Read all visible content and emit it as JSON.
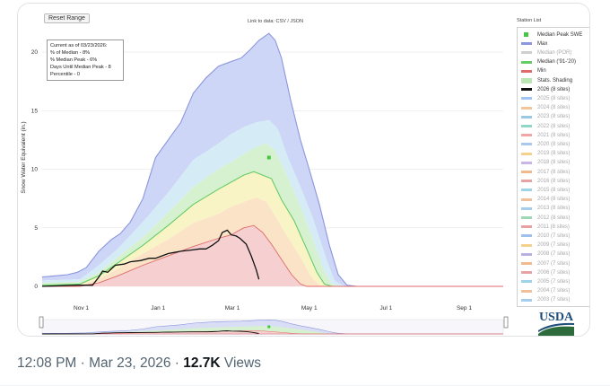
{
  "controls": {
    "reset_label": "Reset Range",
    "link_label": "Link to data: CSV / JSON"
  },
  "info": {
    "line1": "Current as of 03/23/2026:",
    "line2": "% of Median - 8%",
    "line3": "% Median Peak - 6%",
    "line4": "Days Until Median Peak - 8",
    "line5": "Percentile - 0"
  },
  "station_list": {
    "title": "Station List",
    "items": [
      {
        "label": "Median Peak SWE",
        "color": "#44c644",
        "marker": "square"
      },
      {
        "label": "Max",
        "color": "#8c96dc"
      },
      {
        "label": "Median (POR)",
        "color": "#cfcfcf",
        "muted": true
      },
      {
        "label": "Median ('91-'20)",
        "color": "#66cc66"
      },
      {
        "label": "Min",
        "color": "#e06a6a"
      },
      {
        "label": "Stats. Shading",
        "color": "#b9e6b2"
      },
      {
        "label": "2026 (8 sites)",
        "color": "#111111"
      },
      {
        "label": "2025 (8 sites)",
        "color": "#9ec5f5",
        "muted": true
      },
      {
        "label": "2024 (8 sites)",
        "color": "#f5c49a",
        "muted": true
      },
      {
        "label": "2023 (8 sites)",
        "color": "#9cc8e8",
        "muted": true
      },
      {
        "label": "2022 (8 sites)",
        "color": "#8fd8c8",
        "muted": true
      },
      {
        "label": "2021 (8 sites)",
        "color": "#f1a6a6",
        "muted": true
      },
      {
        "label": "2020 (8 sites)",
        "color": "#a8c8f0",
        "muted": true
      },
      {
        "label": "2019 (8 sites)",
        "color": "#f4d28a",
        "muted": true
      },
      {
        "label": "2018 (8 sites)",
        "color": "#c8b6e8",
        "muted": true
      },
      {
        "label": "2017 (8 sites)",
        "color": "#f2b98c",
        "muted": true
      },
      {
        "label": "2016 (8 sites)",
        "color": "#e7a3a3",
        "muted": true
      },
      {
        "label": "2015 (8 sites)",
        "color": "#9fd4e8",
        "muted": true
      },
      {
        "label": "2014 (8 sites)",
        "color": "#f0c09a",
        "muted": true
      },
      {
        "label": "2013 (8 sites)",
        "color": "#a5cdee",
        "muted": true
      },
      {
        "label": "2012 (8 sites)",
        "color": "#9fd6b4",
        "muted": true
      },
      {
        "label": "2011 (8 sites)",
        "color": "#e9a0a0",
        "muted": true
      },
      {
        "label": "2010 (7 sites)",
        "color": "#9ec0ec",
        "muted": true
      },
      {
        "label": "2009 (7 sites)",
        "color": "#f4d28a",
        "muted": true
      },
      {
        "label": "2008 (7 sites)",
        "color": "#b8b0e0",
        "muted": true
      },
      {
        "label": "2007 (7 sites)",
        "color": "#f2b98c",
        "muted": true
      },
      {
        "label": "2006 (7 sites)",
        "color": "#e7a3a3",
        "muted": true
      },
      {
        "label": "2005 (7 sites)",
        "color": "#9fd4e8",
        "muted": true
      },
      {
        "label": "2004 (7 sites)",
        "color": "#f0c09a",
        "muted": true
      },
      {
        "label": "2003 (7 sites)",
        "color": "#a5cdee",
        "muted": true
      }
    ]
  },
  "chart_data": {
    "type": "area",
    "ylabel": "Snow Water Equivalent (in.)",
    "ylim": [
      0,
      22
    ],
    "yticks": [
      0,
      5,
      10,
      15,
      20
    ],
    "x_ticks": [
      "Nov 1",
      "Jan 1",
      "Mar 1",
      "May 1",
      "Jul 1",
      "Sep 1"
    ],
    "x_tick_days": [
      31,
      92,
      151,
      212,
      273,
      335
    ],
    "xlim": [
      0,
      366
    ],
    "grid": "horizontal",
    "max": [
      [
        0,
        0.8
      ],
      [
        10,
        0.9
      ],
      [
        20,
        1.0
      ],
      [
        28,
        1.2
      ],
      [
        35,
        1.6
      ],
      [
        45,
        3.0
      ],
      [
        55,
        4.0
      ],
      [
        62,
        4.5
      ],
      [
        70,
        5.5
      ],
      [
        80,
        7.5
      ],
      [
        90,
        11.0
      ],
      [
        100,
        12.5
      ],
      [
        110,
        14.0
      ],
      [
        120,
        16.5
      ],
      [
        130,
        17.8
      ],
      [
        140,
        18.8
      ],
      [
        150,
        19.2
      ],
      [
        158,
        19.5
      ],
      [
        165,
        20.2
      ],
      [
        172,
        21.0
      ],
      [
        180,
        21.6
      ],
      [
        185,
        21.0
      ],
      [
        190,
        19.5
      ],
      [
        197,
        16.0
      ],
      [
        205,
        12.5
      ],
      [
        212,
        10.0
      ],
      [
        220,
        7.0
      ],
      [
        228,
        3.5
      ],
      [
        235,
        1.0
      ],
      [
        242,
        0.1
      ],
      [
        250,
        0
      ],
      [
        366,
        0
      ]
    ],
    "p90": [
      [
        0,
        0.5
      ],
      [
        30,
        0.6
      ],
      [
        45,
        1.8
      ],
      [
        60,
        3.2
      ],
      [
        80,
        5.5
      ],
      [
        100,
        8.0
      ],
      [
        120,
        10.8
      ],
      [
        140,
        12.2
      ],
      [
        150,
        13.0
      ],
      [
        160,
        13.6
      ],
      [
        170,
        14.0
      ],
      [
        180,
        14.2
      ],
      [
        187,
        13.5
      ],
      [
        195,
        11.0
      ],
      [
        205,
        8.5
      ],
      [
        215,
        5.8
      ],
      [
        225,
        2.5
      ],
      [
        232,
        0.5
      ],
      [
        240,
        0
      ],
      [
        366,
        0
      ]
    ],
    "p70": [
      [
        0,
        0.3
      ],
      [
        30,
        0.4
      ],
      [
        45,
        1.2
      ],
      [
        60,
        2.5
      ],
      [
        80,
        4.2
      ],
      [
        100,
        6.3
      ],
      [
        120,
        8.5
      ],
      [
        140,
        10.0
      ],
      [
        150,
        10.6
      ],
      [
        160,
        11.3
      ],
      [
        170,
        11.9
      ],
      [
        178,
        12.2
      ],
      [
        185,
        11.6
      ],
      [
        195,
        9.3
      ],
      [
        205,
        6.8
      ],
      [
        215,
        4.0
      ],
      [
        223,
        1.5
      ],
      [
        230,
        0.2
      ],
      [
        236,
        0
      ],
      [
        366,
        0
      ]
    ],
    "p50": [
      [
        0,
        0.1
      ],
      [
        30,
        0.2
      ],
      [
        45,
        0.9
      ],
      [
        60,
        2.0
      ],
      [
        80,
        3.5
      ],
      [
        100,
        5.2
      ],
      [
        120,
        7.0
      ],
      [
        140,
        8.3
      ],
      [
        150,
        8.9
      ],
      [
        160,
        9.5
      ],
      [
        168,
        9.8
      ],
      [
        175,
        9.5
      ],
      [
        182,
        9.2
      ],
      [
        190,
        7.4
      ],
      [
        200,
        5.6
      ],
      [
        210,
        3.2
      ],
      [
        218,
        1.2
      ],
      [
        224,
        0.2
      ],
      [
        230,
        0
      ],
      [
        366,
        0
      ]
    ],
    "p30": [
      [
        0,
        0
      ],
      [
        30,
        0.1
      ],
      [
        45,
        0.6
      ],
      [
        60,
        1.5
      ],
      [
        80,
        2.8
      ],
      [
        100,
        4.0
      ],
      [
        120,
        5.4
      ],
      [
        140,
        6.2
      ],
      [
        150,
        6.8
      ],
      [
        160,
        7.2
      ],
      [
        170,
        7.6
      ],
      [
        178,
        7.2
      ],
      [
        185,
        6.0
      ],
      [
        195,
        4.2
      ],
      [
        205,
        2.5
      ],
      [
        213,
        0.9
      ],
      [
        220,
        0.1
      ],
      [
        226,
        0
      ],
      [
        366,
        0
      ]
    ],
    "p10": [
      [
        0,
        0
      ],
      [
        30,
        0
      ],
      [
        45,
        0.3
      ],
      [
        60,
        0.9
      ],
      [
        80,
        1.8
      ],
      [
        100,
        2.6
      ],
      [
        120,
        3.4
      ],
      [
        140,
        4.1
      ],
      [
        150,
        4.4
      ],
      [
        160,
        5.0
      ],
      [
        168,
        5.2
      ],
      [
        175,
        4.6
      ],
      [
        182,
        3.6
      ],
      [
        190,
        2.3
      ],
      [
        198,
        1.0
      ],
      [
        205,
        0.2
      ],
      [
        210,
        0
      ],
      [
        366,
        0
      ]
    ],
    "min": [
      [
        0,
        0
      ],
      [
        60,
        0
      ],
      [
        80,
        0
      ],
      [
        100,
        0
      ],
      [
        366,
        0
      ]
    ],
    "median": [
      [
        0,
        0.1
      ],
      [
        30,
        0.2
      ],
      [
        45,
        0.9
      ],
      [
        60,
        2.0
      ],
      [
        80,
        3.5
      ],
      [
        100,
        5.2
      ],
      [
        120,
        7.0
      ],
      [
        140,
        8.3
      ],
      [
        150,
        8.9
      ],
      [
        160,
        9.5
      ],
      [
        168,
        9.8
      ],
      [
        175,
        9.5
      ],
      [
        182,
        9.2
      ],
      [
        190,
        7.4
      ],
      [
        200,
        5.6
      ],
      [
        210,
        3.2
      ],
      [
        218,
        1.2
      ],
      [
        224,
        0.2
      ],
      [
        230,
        0
      ],
      [
        366,
        0
      ]
    ],
    "median_peak": {
      "x": 180,
      "y": 11.0
    },
    "series_2026": [
      [
        0,
        0
      ],
      [
        28,
        0.1
      ],
      [
        40,
        0.1
      ],
      [
        45,
        0.8
      ],
      [
        48,
        1.3
      ],
      [
        52,
        1.2
      ],
      [
        58,
        1.8
      ],
      [
        65,
        1.9
      ],
      [
        70,
        2.1
      ],
      [
        78,
        2.2
      ],
      [
        85,
        2.4
      ],
      [
        90,
        2.4
      ],
      [
        95,
        2.6
      ],
      [
        100,
        2.8
      ],
      [
        105,
        2.9
      ],
      [
        110,
        3.0
      ],
      [
        118,
        3.1
      ],
      [
        125,
        3.2
      ],
      [
        130,
        3.2
      ],
      [
        135,
        3.5
      ],
      [
        140,
        3.9
      ],
      [
        143,
        4.6
      ],
      [
        147,
        4.8
      ],
      [
        150,
        4.4
      ],
      [
        154,
        4.3
      ],
      [
        157,
        4.1
      ],
      [
        162,
        3.6
      ],
      [
        166,
        2.6
      ],
      [
        170,
        1.4
      ],
      [
        172,
        0.6
      ]
    ]
  },
  "usda_label": "USDA",
  "footer": {
    "time": "12:08 PM · Mar 23, 2026 · ",
    "views_count": "12.7K",
    "views_label": " Views"
  }
}
